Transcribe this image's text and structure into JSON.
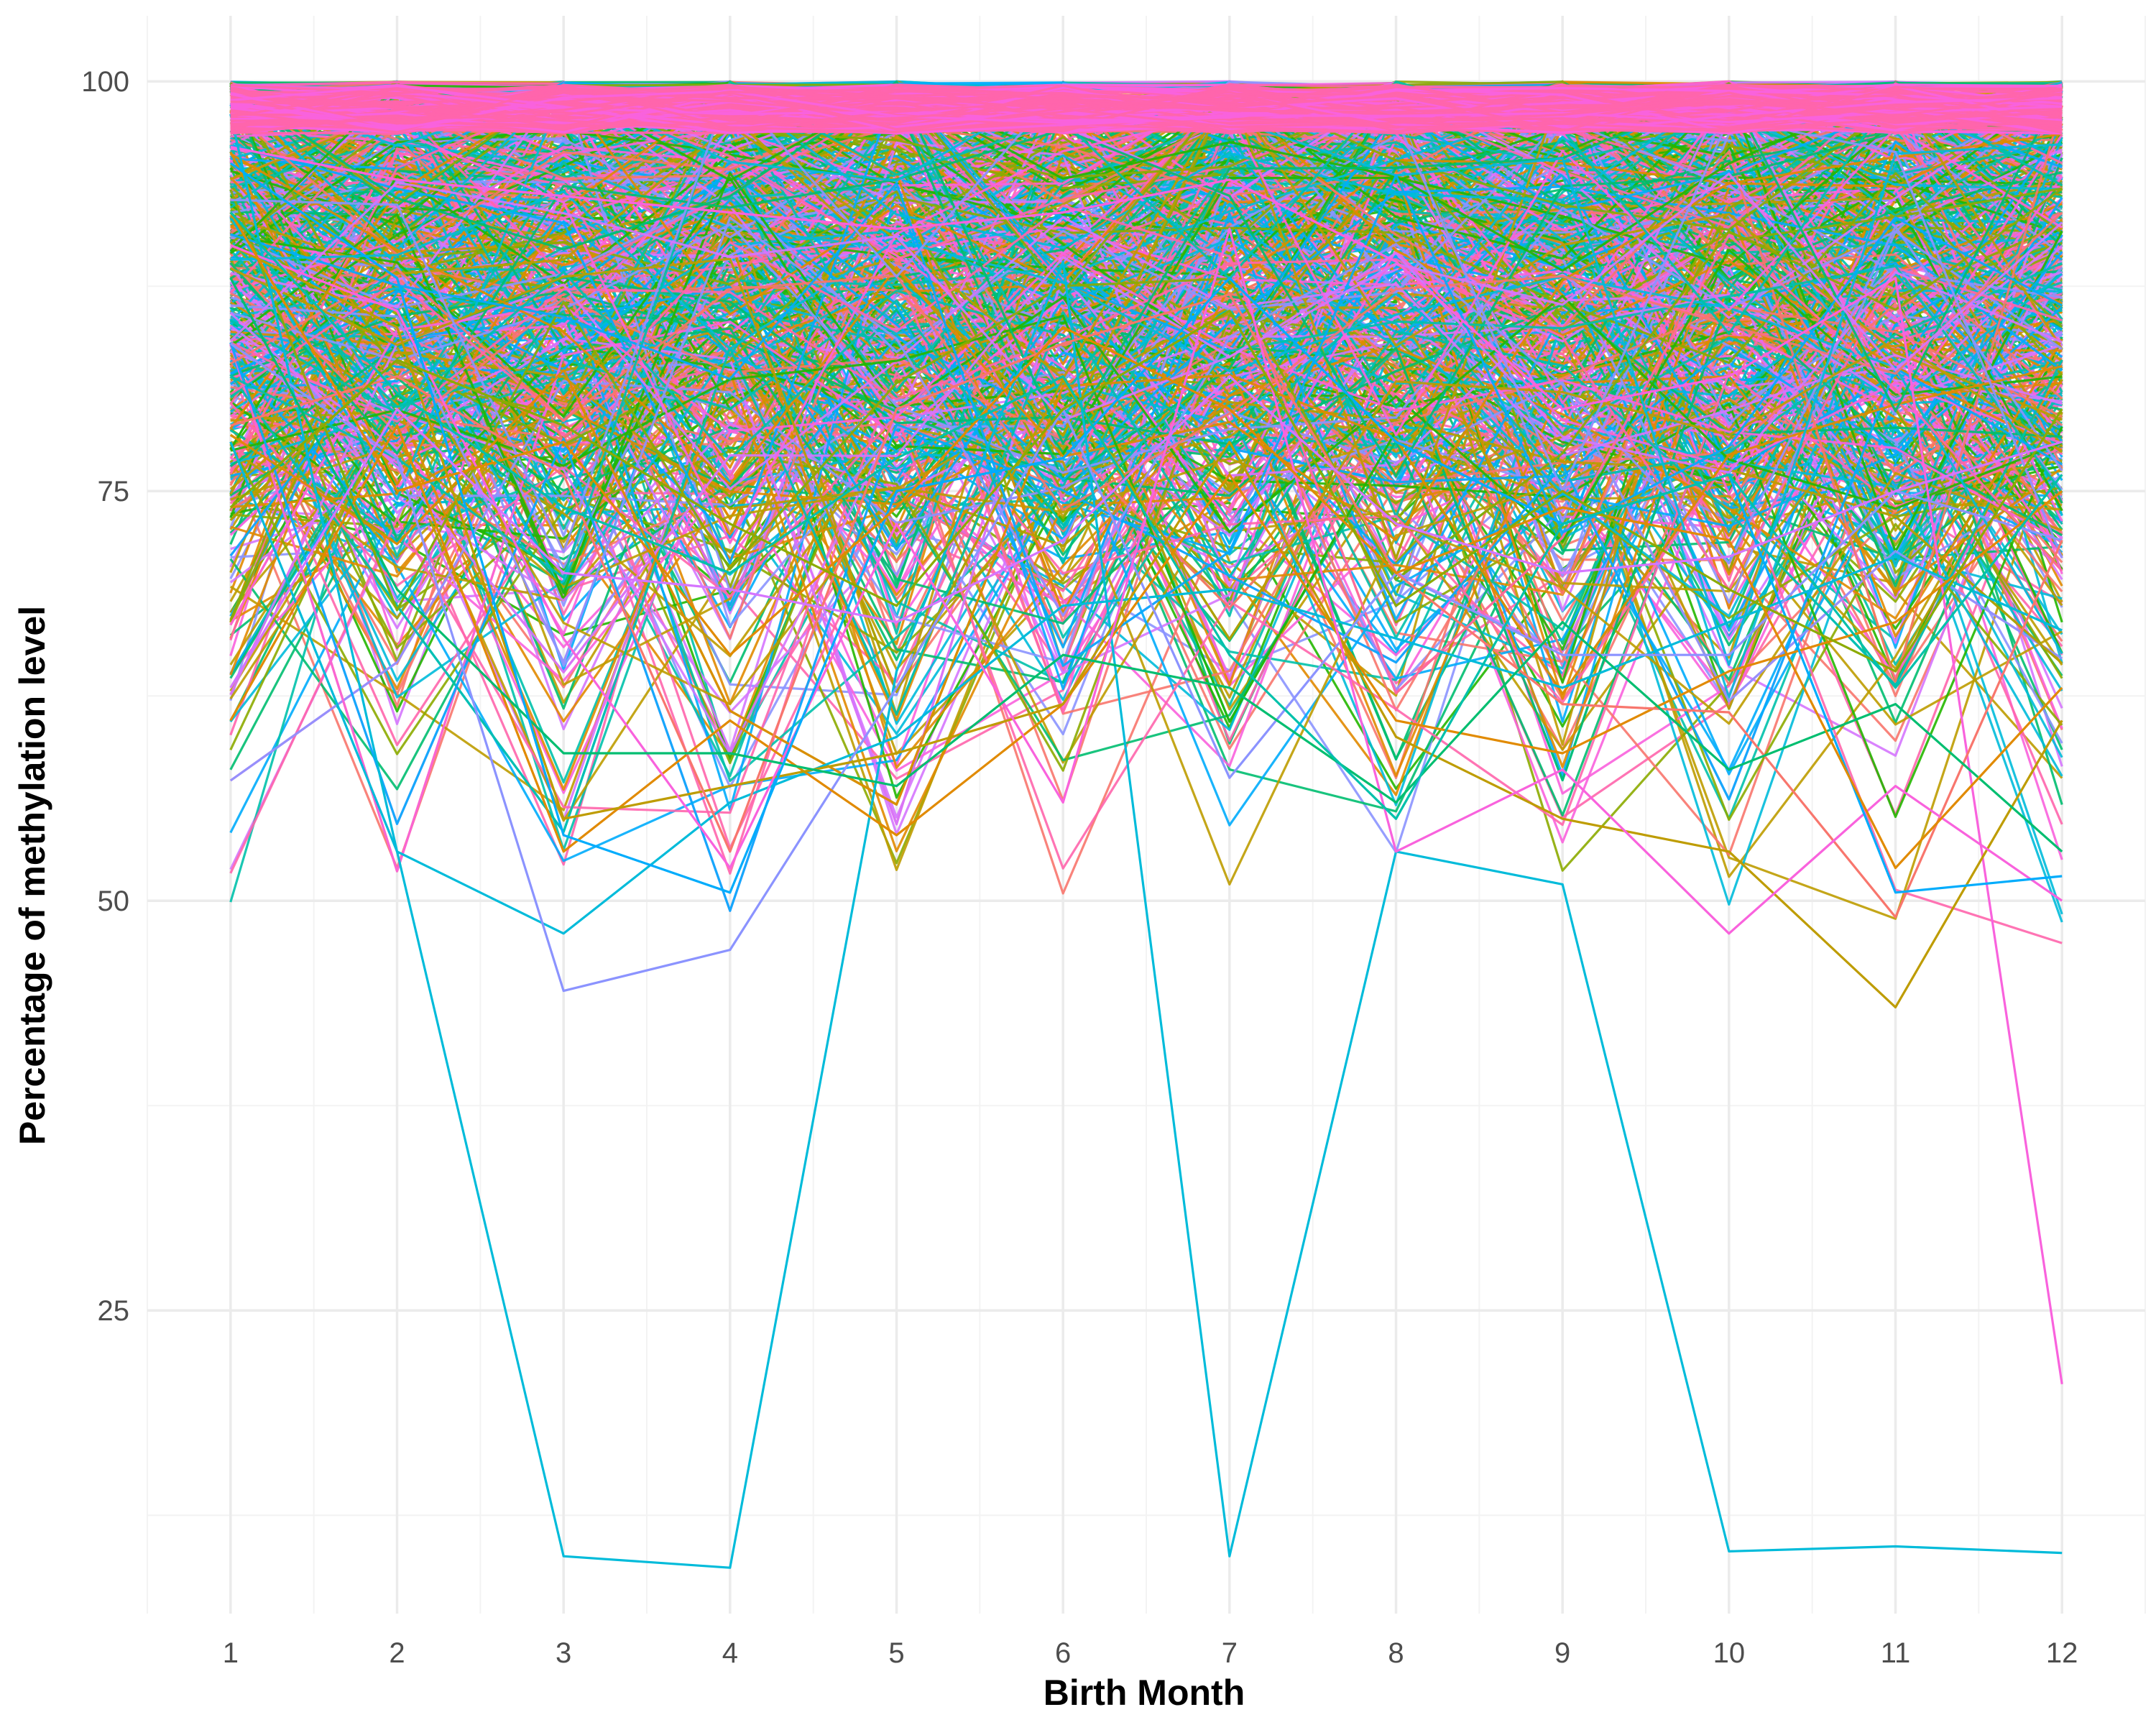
{
  "chart_data": {
    "type": "line",
    "xlabel": "Birth Month",
    "ylabel": "Percentage of methylation level",
    "x": [
      1,
      2,
      3,
      4,
      5,
      6,
      7,
      8,
      9,
      10,
      11,
      12
    ],
    "xlim": [
      0.5,
      12.5
    ],
    "ylim": [
      6.5,
      104
    ],
    "x_ticks": [
      "1",
      "2",
      "3",
      "4",
      "5",
      "6",
      "7",
      "8",
      "9",
      "10",
      "11",
      "12"
    ],
    "y_ticks": [
      25,
      50,
      75,
      100
    ],
    "y_tick_labels": [
      "25",
      "50",
      "75",
      "100"
    ],
    "grid": true,
    "legend": "none",
    "palette": [
      "#F8766D",
      "#E18A00",
      "#BE9C00",
      "#8CAB00",
      "#24B700",
      "#00BE70",
      "#00C1AB",
      "#00BBDA",
      "#00ACFC",
      "#8B93FF",
      "#D575FE",
      "#F962DD",
      "#FF65AC"
    ],
    "highlighted_series": [
      {
        "color": "#00BBDA",
        "values": [
          78,
          53,
          10,
          9.3,
          64,
          89,
          10,
          53,
          51,
          10.3,
          10.6,
          10.2
        ]
      },
      {
        "color": "#F962DD",
        "values": [
          96,
          94,
          93,
          92,
          91,
          92,
          94,
          89,
          80,
          82,
          88,
          20.5
        ]
      },
      {
        "color": "#00BBDA",
        "values": [
          98,
          53,
          48,
          56,
          60,
          68,
          69,
          66,
          63,
          67,
          71,
          66.5
        ]
      },
      {
        "color": "#8B93FF",
        "values": [
          84,
          77,
          44.5,
          47,
          63,
          80,
          57.5,
          70,
          65,
          65,
          75,
          72
        ]
      },
      {
        "color": "#E18A00",
        "values": [
          61,
          79,
          53,
          61,
          54,
          62,
          76,
          61,
          59,
          64,
          67,
          75
        ]
      },
      {
        "color": "#BE9C00",
        "values": [
          90,
          85,
          55,
          57,
          59,
          62,
          78,
          60,
          55,
          53,
          43.5,
          61
        ]
      },
      {
        "color": "#F8766D",
        "values": [
          79,
          82,
          76,
          53,
          80,
          84,
          87,
          70,
          62,
          61.5,
          49,
          72
        ]
      },
      {
        "color": "#F962DD",
        "values": [
          90,
          86,
          66,
          52,
          73,
          56,
          91,
          53,
          58,
          48,
          57,
          50
        ]
      },
      {
        "color": "#00BE70",
        "values": [
          88,
          69,
          59,
          59,
          57,
          65,
          63,
          56,
          67,
          58,
          62,
          53
        ]
      },
      {
        "color": "#00ACFC",
        "values": [
          95,
          88,
          54,
          50.5,
          75,
          77,
          88,
          78,
          73,
          76,
          50.5,
          51.5
        ]
      },
      {
        "color": "#E18A00",
        "values": [
          92,
          75,
          78,
          65,
          74,
          85,
          80,
          70,
          74,
          72,
          52,
          63
        ]
      },
      {
        "color": "#8CAB00",
        "values": [
          74,
          83,
          79,
          73,
          68,
          80,
          86,
          68,
          75,
          69,
          64,
          80
        ]
      },
      {
        "color": "#00C1AB",
        "values": [
          92,
          81,
          74,
          70,
          77,
          82,
          65,
          55,
          73,
          76,
          63,
          76
        ]
      },
      {
        "color": "#D575FE",
        "values": [
          63,
          80,
          70,
          69,
          67,
          72,
          82,
          73,
          70,
          71,
          75,
          78
        ]
      }
    ]
  }
}
